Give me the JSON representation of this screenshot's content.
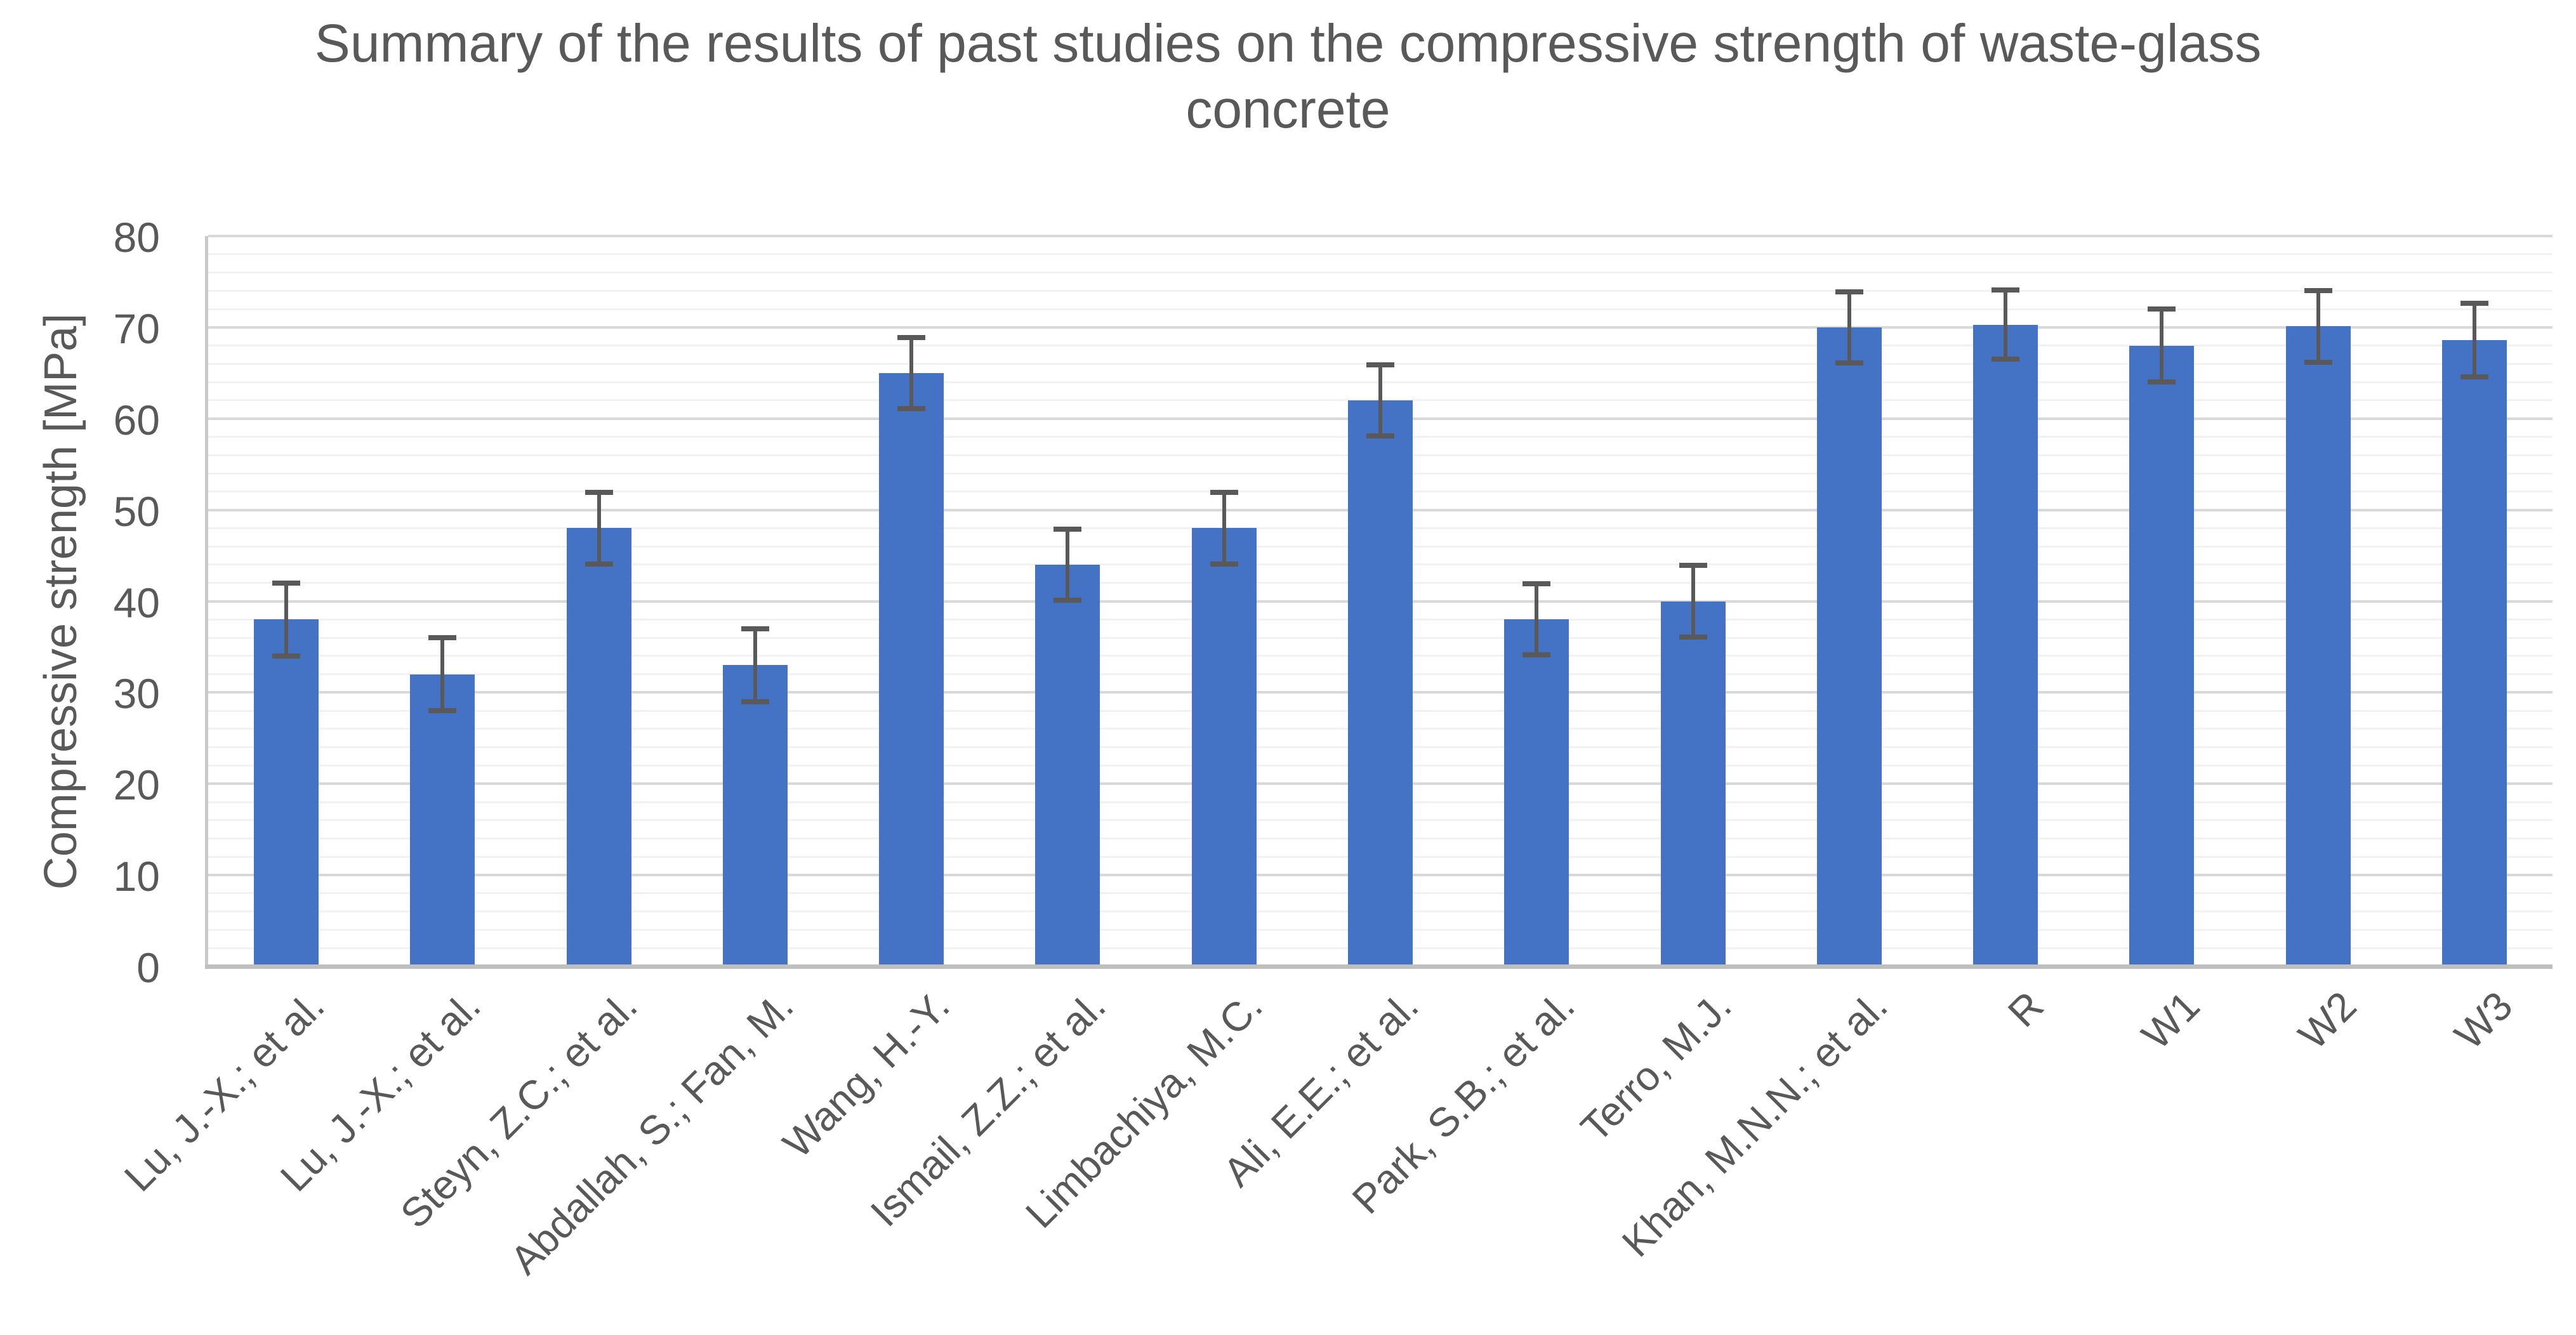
{
  "title": {
    "line1": "Summary of the results of past studies on the compressive strength of waste-glass",
    "line2": "concrete"
  },
  "y_axis": {
    "label": "Compressive strength [MPa]",
    "ticks": [
      "0",
      "10",
      "20",
      "30",
      "40",
      "50",
      "60",
      "70",
      "80"
    ],
    "min": 0,
    "max": 80,
    "major_step": 10,
    "minor_step": 2
  },
  "chart_data": {
    "type": "bar",
    "title": "Summary of the results of past studies on the compressive strength of waste-glass concrete",
    "xlabel": "",
    "ylabel": "Compressive strength [MPa]",
    "ylim": [
      0,
      80
    ],
    "grid": {
      "horizontal_major": true,
      "horizontal_minor": true,
      "minor_step": 2,
      "major_step": 10
    },
    "legend_position": "none",
    "categories": [
      "Lu, J.-X.; et al.",
      "Lu, J.-X.; et al.",
      "Steyn, Z.C.; et al.",
      "Abdallah, S.; Fan, M.",
      "Wang, H.-Y.",
      "Ismail, Z.Z.; et al.",
      "Limbachiya, M.C.",
      "Ali, E.E.; et al.",
      "Park, S.B.; et al.",
      "Terro, M.J.",
      "Khan, M.N.N.; et al.",
      "R",
      "W1",
      "W2",
      "W3"
    ],
    "values": [
      38,
      32,
      48,
      33,
      65,
      44,
      48,
      62,
      38,
      40,
      70,
      70.3,
      68,
      70.1,
      68.6
    ],
    "error_bars": [
      4,
      4,
      3.9,
      4,
      3.9,
      3.9,
      3.9,
      3.9,
      3.9,
      3.9,
      3.9,
      3.8,
      4,
      3.9,
      4
    ],
    "bar_color": "#4472C4",
    "error_bar_color": "#595959"
  },
  "colors": {
    "background": "#FFFFFF",
    "text": "#595959",
    "bar": "#4472C4",
    "error_bar": "#595959",
    "gridline_major": "#D9D9D9",
    "gridline_minor": "#F2F2F2",
    "x_axis_line": "#BFBFBF",
    "y_axis_line": "#C9C9C9"
  }
}
